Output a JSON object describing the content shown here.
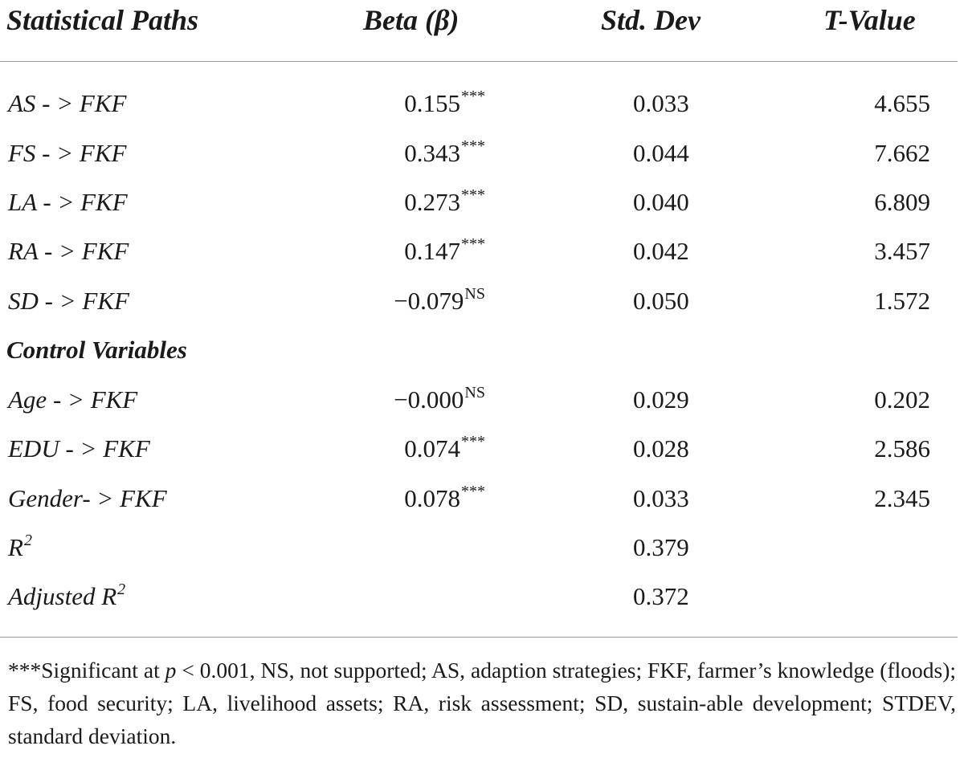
{
  "headers": {
    "path": "Statistical Paths",
    "beta": "Beta (β)",
    "sd": "Std. Dev",
    "t": "T-Value"
  },
  "rows": [
    {
      "path": "AS - > FKF",
      "beta": "0.155",
      "beta_sig": "***",
      "sd": "0.033",
      "t": "4.655"
    },
    {
      "path": "FS - > FKF",
      "beta": "0.343",
      "beta_sig": "***",
      "sd": "0.044",
      "t": "7.662"
    },
    {
      "path": "LA - > FKF",
      "beta": "0.273",
      "beta_sig": "***",
      "sd": "0.040",
      "t": "6.809"
    },
    {
      "path": "RA - > FKF",
      "beta": "0.147",
      "beta_sig": "***",
      "sd": "0.042",
      "t": "3.457"
    },
    {
      "path": "SD - > FKF",
      "beta": "−0.079",
      "beta_sig": "NS",
      "sd": "0.050",
      "t": "1.572"
    }
  ],
  "section_label": "Control Variables",
  "control_rows": [
    {
      "path": "Age - > FKF",
      "beta": "−0.000",
      "beta_sig": "NS",
      "sd": "0.029",
      "t": "0.202"
    },
    {
      "path": "EDU - > FKF",
      "beta": "0.074",
      "beta_sig": "***",
      "sd": "0.028",
      "t": "2.586"
    },
    {
      "path": "Gender- > FKF",
      "beta": "0.078",
      "beta_sig": "***",
      "sd": "0.033",
      "t": "2.345"
    }
  ],
  "r2": {
    "label": "R",
    "sup": "2",
    "value": "0.379"
  },
  "adj_r2": {
    "label": "Adjusted R",
    "sup": "2",
    "value": "0.372"
  },
  "footnote": {
    "part1": "***Significant at ",
    "p": "p",
    "part2": " < 0.001, NS, not supported; AS, adaption strategies; FKF, farmer’s knowledge (floods); FS, food security; LA, livelihood assets; RA, risk assessment; SD, sustain-able development; STDEV, standard deviation."
  }
}
